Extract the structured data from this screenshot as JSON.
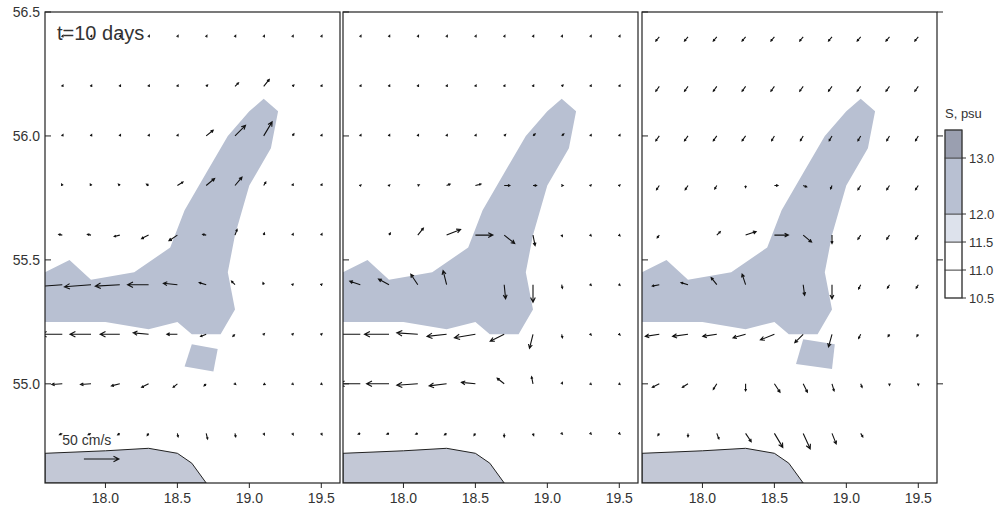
{
  "chart_data": [
    {
      "type": "vector_field",
      "title": "t=10 days",
      "xlim": [
        17.58,
        19.63
      ],
      "ylim": [
        54.6,
        56.5
      ],
      "xticks": [
        {
          "value": 18,
          "label": "18.0"
        },
        18.5,
        {
          "value": 19,
          "label": "19.0"
        },
        19.5
      ],
      "yticks": [
        {
          "value": 55,
          "label": "55.0"
        },
        55.5,
        {
          "value": 56,
          "label": "56.0"
        },
        56.5
      ],
      "tick_labels": true,
      "x": [
        17.7,
        17.9,
        18.1,
        18.3,
        18.5,
        18.7,
        18.9,
        19.1,
        19.3,
        19.5
      ],
      "y": [
        54.8,
        55.0,
        55.2,
        55.4,
        55.6,
        55.8,
        56.0,
        56.2,
        56.4
      ],
      "u": [
        [
          -4,
          -4,
          -3,
          -2,
          1,
          2,
          1,
          1,
          1,
          1
        ],
        [
          -15,
          -15,
          -12,
          -10,
          -6,
          -3,
          1,
          2,
          1,
          1
        ],
        [
          -30,
          -30,
          -28,
          -22,
          -15,
          -8,
          -3,
          1,
          1,
          1
        ],
        [
          -40,
          -38,
          -35,
          -30,
          -20,
          -10,
          -5,
          -1,
          1,
          1
        ],
        [
          -5,
          -5,
          -8,
          -10,
          -12,
          -5,
          3,
          1,
          1,
          1
        ],
        [
          -1,
          -1,
          -2,
          -3,
          8,
          12,
          10,
          3,
          1,
          1
        ],
        [
          1,
          1,
          1,
          1,
          1,
          10,
          15,
          12,
          2,
          1
        ],
        [
          1,
          1,
          1,
          1,
          1,
          2,
          5,
          8,
          2,
          1
        ],
        [
          1,
          1,
          1,
          1,
          1,
          1,
          1,
          1,
          1,
          1
        ]
      ],
      "v": [
        [
          -2,
          -2,
          -2,
          -3,
          -5,
          -8,
          -5,
          -2,
          -2,
          -2
        ],
        [
          -1,
          -1,
          -3,
          -5,
          -5,
          -3,
          -1,
          -1,
          -1,
          -1
        ],
        [
          0,
          0,
          0,
          2,
          0,
          -3,
          -3,
          1,
          1,
          1
        ],
        [
          -3,
          -3,
          -2,
          0,
          2,
          3,
          5,
          3,
          1,
          1
        ],
        [
          1,
          1,
          -2,
          -5,
          -8,
          1,
          8,
          3,
          2,
          2
        ],
        [
          2,
          2,
          2,
          2,
          5,
          10,
          12,
          5,
          2,
          2
        ],
        [
          2,
          2,
          2,
          2,
          2,
          8,
          15,
          20,
          3,
          2
        ],
        [
          2,
          2,
          2,
          2,
          2,
          2,
          5,
          10,
          2,
          2
        ],
        [
          2,
          2,
          2,
          2,
          2,
          2,
          2,
          2,
          2,
          2
        ]
      ],
      "salinity": [
        {
          "value": 12.5,
          "lon": [
            17.58,
            17.58,
            17.75,
            17.9,
            18.2,
            18.45,
            18.55,
            18.7,
            18.85,
            19.0,
            19.1,
            19.2,
            19.15,
            19.0,
            18.9,
            18.85,
            18.9,
            18.8,
            18.6,
            18.5,
            18.3,
            18.0
          ],
          "lat": [
            55.25,
            55.45,
            55.5,
            55.42,
            55.45,
            55.55,
            55.7,
            55.85,
            56.0,
            56.1,
            56.15,
            56.1,
            55.95,
            55.8,
            55.6,
            55.45,
            55.3,
            55.2,
            55.2,
            55.25,
            55.22,
            55.25
          ]
        },
        {
          "value": 12.5,
          "lon": [
            18.55,
            18.75,
            18.78,
            18.6
          ],
          "lat": [
            55.07,
            55.05,
            55.14,
            55.16
          ]
        }
      ],
      "land": {
        "lon": [
          17.58,
          17.58,
          18.0,
          18.3,
          18.5,
          18.6,
          18.7
        ],
        "lat": [
          54.6,
          54.72,
          54.73,
          54.74,
          54.72,
          54.68,
          54.6
        ]
      },
      "scale_arrow": {
        "value": 50,
        "label": "50 cm/s"
      }
    },
    {
      "type": "vector_field",
      "xlim": [
        17.58,
        19.63
      ],
      "ylim": [
        54.6,
        56.5
      ],
      "xticks": [
        {
          "value": 18,
          "label": "18.0"
        },
        18.5,
        {
          "value": 19,
          "label": "19.0"
        },
        19.5
      ],
      "yticks": [
        55,
        55.5,
        56,
        56.5
      ],
      "tick_labels": "x",
      "x": [
        17.7,
        17.9,
        18.1,
        18.3,
        18.5,
        18.7,
        18.9,
        19.1,
        19.3,
        19.5
      ],
      "y": [
        54.8,
        55.0,
        55.2,
        55.4,
        55.6,
        55.8,
        56.0,
        56.2,
        56.4
      ],
      "u": [
        [
          -3,
          -3,
          -3,
          -3,
          -2,
          0,
          1,
          1,
          1,
          1
        ],
        [
          -30,
          -32,
          -30,
          -25,
          -20,
          -10,
          -2,
          1,
          1,
          1
        ],
        [
          -35,
          -35,
          -30,
          -28,
          -30,
          -20,
          -5,
          1,
          1,
          1
        ],
        [
          -15,
          -15,
          -10,
          -5,
          0,
          2,
          0,
          1,
          1,
          1
        ],
        [
          0,
          2,
          8,
          20,
          25,
          15,
          3,
          1,
          1,
          1
        ],
        [
          1,
          1,
          2,
          5,
          8,
          8,
          5,
          2,
          1,
          1
        ],
        [
          1,
          1,
          1,
          1,
          1,
          2,
          3,
          3,
          1,
          1
        ],
        [
          1,
          1,
          1,
          1,
          1,
          1,
          1,
          2,
          1,
          1
        ],
        [
          1,
          1,
          1,
          1,
          1,
          1,
          1,
          1,
          1,
          1
        ]
      ],
      "v": [
        [
          -1,
          -1,
          -1,
          -2,
          -3,
          -5,
          -3,
          -1,
          -1,
          -1
        ],
        [
          0,
          0,
          -2,
          -3,
          2,
          8,
          10,
          2,
          -1,
          -1
        ],
        [
          0,
          0,
          2,
          -3,
          -5,
          -10,
          -20,
          -5,
          -1,
          -1
        ],
        [
          5,
          8,
          15,
          20,
          0,
          -20,
          -25,
          -5,
          -1,
          -1
        ],
        [
          0,
          3,
          10,
          8,
          0,
          -12,
          -15,
          -2,
          -1,
          -1
        ],
        [
          1,
          1,
          1,
          2,
          2,
          0,
          0,
          0,
          1,
          1
        ],
        [
          2,
          2,
          2,
          2,
          2,
          2,
          3,
          3,
          2,
          2
        ],
        [
          2,
          2,
          2,
          2,
          2,
          2,
          2,
          2,
          2,
          2
        ],
        [
          2,
          2,
          2,
          2,
          2,
          2,
          2,
          2,
          2,
          2
        ]
      ],
      "salinity": [
        {
          "value": 12.5,
          "lon": [
            17.58,
            17.58,
            17.75,
            17.9,
            18.2,
            18.45,
            18.55,
            18.7,
            18.85,
            19.0,
            19.1,
            19.2,
            19.15,
            19.0,
            18.9,
            18.85,
            18.9,
            18.8,
            18.6,
            18.5,
            18.3,
            18.0
          ],
          "lat": [
            55.25,
            55.45,
            55.5,
            55.42,
            55.45,
            55.55,
            55.7,
            55.85,
            56.0,
            56.1,
            56.15,
            56.1,
            55.95,
            55.8,
            55.6,
            55.45,
            55.3,
            55.2,
            55.2,
            55.25,
            55.22,
            55.25
          ]
        }
      ],
      "land": {
        "lon": [
          17.58,
          17.58,
          18.0,
          18.3,
          18.5,
          18.6,
          18.7
        ],
        "lat": [
          54.6,
          54.72,
          54.73,
          54.74,
          54.72,
          54.68,
          54.6
        ]
      }
    },
    {
      "type": "vector_field",
      "xlim": [
        17.58,
        19.63
      ],
      "ylim": [
        54.6,
        56.5
      ],
      "xticks": [
        {
          "value": 18,
          "label": "18.0"
        },
        18.5,
        {
          "value": 19,
          "label": "19.0"
        },
        19.5
      ],
      "yticks": [
        55,
        55.5,
        56,
        56.5
      ],
      "tick_labels": "x",
      "x": [
        17.7,
        17.9,
        18.1,
        18.3,
        18.5,
        18.7,
        18.9,
        19.1,
        19.3,
        19.5
      ],
      "y": [
        54.8,
        55.0,
        55.2,
        55.4,
        55.6,
        55.8,
        56.0,
        56.2,
        56.4
      ],
      "u": [
        [
          -2,
          0,
          3,
          8,
          12,
          10,
          6,
          3,
          0,
          0
        ],
        [
          -10,
          -8,
          -5,
          0,
          8,
          6,
          3,
          2,
          0,
          0
        ],
        [
          -20,
          -22,
          -20,
          -18,
          -20,
          -12,
          -5,
          -3,
          -2,
          -2
        ],
        [
          -10,
          -10,
          -8,
          -5,
          0,
          2,
          0,
          -3,
          -3,
          -3
        ],
        [
          -3,
          0,
          5,
          15,
          20,
          12,
          0,
          -4,
          -4,
          -4
        ],
        [
          -4,
          -4,
          -3,
          0,
          5,
          5,
          -2,
          -4,
          -4,
          -4
        ],
        [
          -5,
          -5,
          -5,
          -5,
          -4,
          -4,
          -4,
          -4,
          -4,
          -4
        ],
        [
          -5,
          -5,
          -5,
          -5,
          -5,
          -5,
          -5,
          -5,
          -5,
          -5
        ],
        [
          -5,
          -5,
          -5,
          -5,
          -5,
          -5,
          -5,
          -5,
          -5,
          -5
        ]
      ],
      "v": [
        [
          -3,
          -5,
          -8,
          -12,
          -20,
          -22,
          -15,
          -5,
          0,
          0
        ],
        [
          -5,
          -5,
          -8,
          -10,
          -12,
          -12,
          -10,
          -5,
          -2,
          -2
        ],
        [
          -3,
          -3,
          -3,
          -5,
          -8,
          -12,
          -18,
          -6,
          -3,
          -3
        ],
        [
          -2,
          3,
          10,
          15,
          0,
          -15,
          -20,
          -6,
          -5,
          -5
        ],
        [
          -4,
          0,
          5,
          5,
          0,
          -10,
          -12,
          -6,
          -6,
          -6
        ],
        [
          -6,
          -6,
          -5,
          -3,
          0,
          -2,
          -5,
          -6,
          -6,
          -6
        ],
        [
          -7,
          -7,
          -7,
          -7,
          -7,
          -7,
          -7,
          -7,
          -7,
          -7
        ],
        [
          -7,
          -7,
          -7,
          -7,
          -7,
          -7,
          -7,
          -7,
          -7,
          -7
        ],
        [
          -6,
          -6,
          -6,
          -6,
          -6,
          -6,
          -6,
          -6,
          -6,
          -6
        ]
      ],
      "salinity": [
        {
          "value": 12.5,
          "lon": [
            17.58,
            17.58,
            17.75,
            17.9,
            18.2,
            18.45,
            18.55,
            18.7,
            18.85,
            19.0,
            19.1,
            19.2,
            19.15,
            19.0,
            18.9,
            18.85,
            18.9,
            18.8,
            18.6,
            18.5,
            18.3,
            18.0
          ],
          "lat": [
            55.25,
            55.45,
            55.5,
            55.42,
            55.45,
            55.55,
            55.7,
            55.85,
            56.0,
            56.1,
            56.15,
            56.1,
            55.95,
            55.8,
            55.6,
            55.45,
            55.3,
            55.2,
            55.2,
            55.25,
            55.22,
            55.25
          ]
        },
        {
          "value": 12.5,
          "lon": [
            18.65,
            18.9,
            18.92,
            18.7
          ],
          "lat": [
            55.08,
            55.06,
            55.16,
            55.18
          ]
        }
      ],
      "land": {
        "lon": [
          17.58,
          17.58,
          18.0,
          18.3,
          18.5,
          18.6,
          18.7
        ],
        "lat": [
          54.6,
          54.72,
          54.73,
          54.74,
          54.72,
          54.68,
          54.6
        ]
      },
      "colorbar": {
        "label": "S, psu",
        "range": [
          10.5,
          13.5
        ],
        "ticks": [
          {
            "value": 13,
            "label": "13.0"
          },
          {
            "value": 12,
            "label": "12.0"
          },
          11.5,
          {
            "value": 11,
            "label": "11.0"
          },
          10.5
        ],
        "levels": [
          10.5,
          11,
          11.5,
          12,
          13,
          13.5
        ],
        "colors": [
          "#ffffff",
          "#ffffff",
          "#dde2ec",
          "#b8c0d2",
          "#9a9fb0"
        ]
      }
    }
  ]
}
